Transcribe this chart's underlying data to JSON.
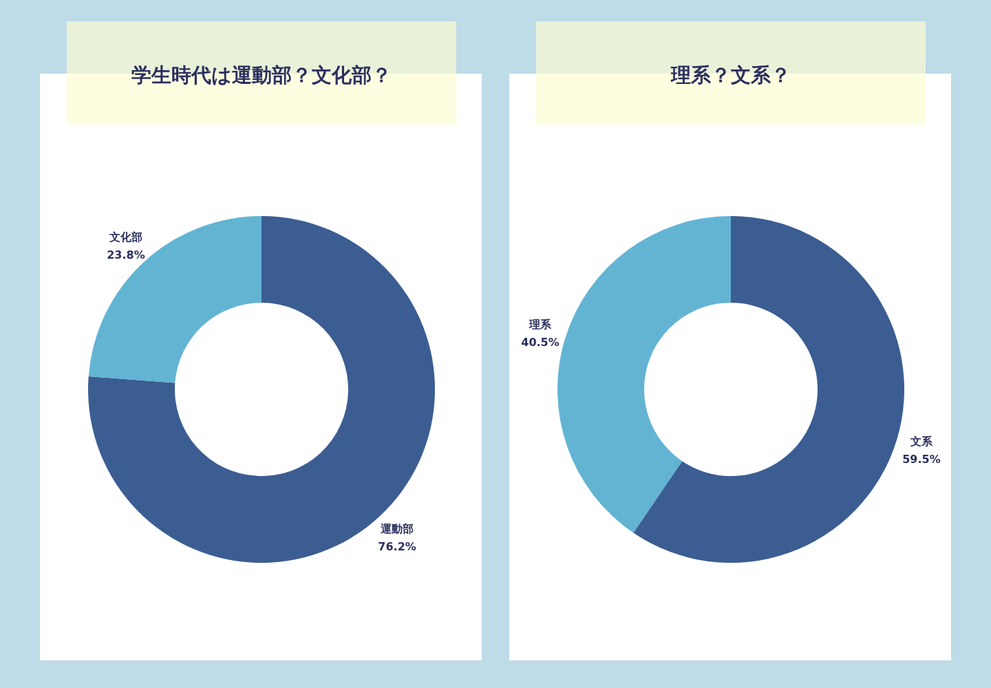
{
  "chart_data": [
    {
      "type": "donut",
      "title": "学生時代は運動部？文化部？",
      "categories": [
        "運動部",
        "文化部"
      ],
      "values": [
        76.2,
        23.8
      ],
      "colors": [
        "#3b5d92",
        "#63b4d3"
      ],
      "value_labels": [
        "76.2%",
        "23.8%"
      ]
    },
    {
      "type": "donut",
      "title": "理系？文系？",
      "categories": [
        "文系",
        "理系"
      ],
      "values": [
        59.5,
        40.5
      ],
      "colors": [
        "#3b5d92",
        "#63b4d3"
      ],
      "value_labels": [
        "59.5%",
        "40.5%"
      ]
    }
  ]
}
